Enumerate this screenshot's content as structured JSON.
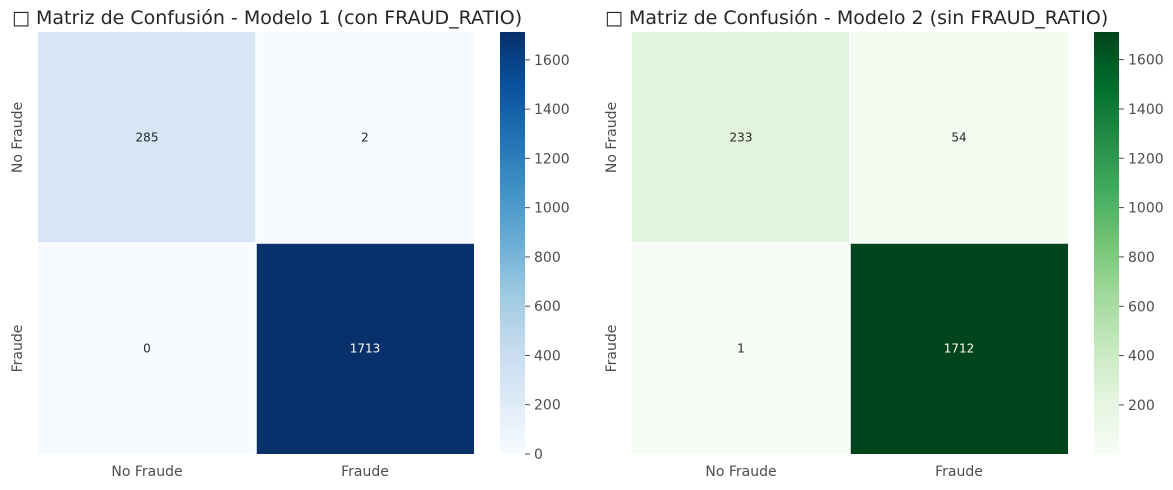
{
  "chart_data": [
    {
      "type": "heatmap",
      "title": "□ Matriz de Confusión - Modelo 1 (con FRAUD_RATIO)",
      "xlabel": "",
      "ylabel": "",
      "x_categories": [
        "No Fraude",
        "Fraude"
      ],
      "y_categories": [
        "No Fraude",
        "Fraude"
      ],
      "values": [
        [
          285,
          2
        ],
        [
          0,
          1713
        ]
      ],
      "colormap": "Blues",
      "colormap_colors": [
        "#f7fbff",
        "#deebf7",
        "#c6dbef",
        "#9ecae1",
        "#6baed6",
        "#4292c6",
        "#2171b5",
        "#08519c",
        "#08306b"
      ],
      "color_range": [
        0,
        1713
      ],
      "colorbar_ticks": [
        0,
        200,
        400,
        600,
        800,
        1000,
        1200,
        1400,
        1600
      ],
      "grid": false
    },
    {
      "type": "heatmap",
      "title": "□ Matriz de Confusión - Modelo 2 (sin FRAUD_RATIO)",
      "xlabel": "",
      "ylabel": "",
      "x_categories": [
        "No Fraude",
        "Fraude"
      ],
      "y_categories": [
        "No Fraude",
        "Fraude"
      ],
      "values": [
        [
          233,
          54
        ],
        [
          1,
          1712
        ]
      ],
      "colormap": "Greens",
      "colormap_colors": [
        "#f7fcf5",
        "#e5f5e0",
        "#c7e9c0",
        "#a1d99b",
        "#74c476",
        "#41ab5d",
        "#238b45",
        "#006d2c",
        "#00441b"
      ],
      "color_range": [
        1,
        1712
      ],
      "colorbar_ticks": [
        200,
        400,
        600,
        800,
        1000,
        1200,
        1400,
        1600
      ],
      "grid": false
    }
  ]
}
